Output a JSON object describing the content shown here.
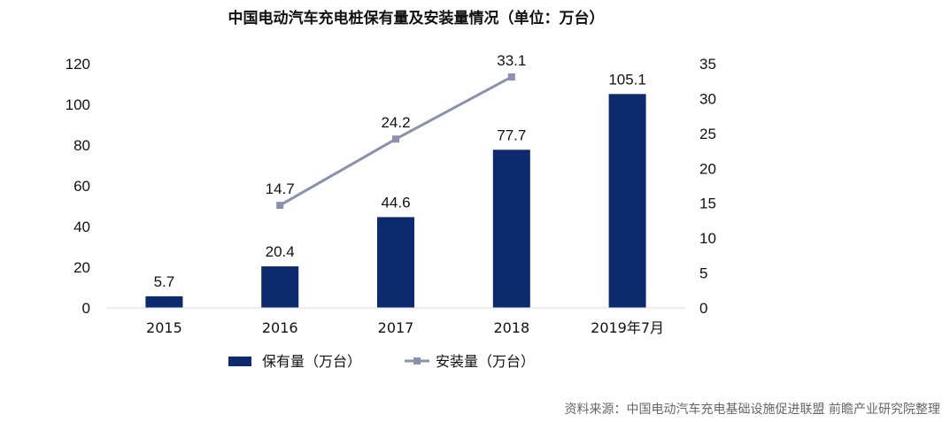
{
  "chart_data": {
    "type": "bar",
    "title": "中国电动汽车充电桩保有量及安装量情况（单位：万台）",
    "categories": [
      "2015",
      "2016",
      "2017",
      "2018",
      "2019年7月"
    ],
    "series": [
      {
        "name": "保有量（万台）",
        "type": "bar",
        "axis": "left",
        "color": "#0d2a6e",
        "values": [
          5.7,
          20.4,
          44.6,
          77.7,
          105.1
        ],
        "labels": [
          "5.7",
          "20.4",
          "44.6",
          "77.7",
          "105.1"
        ]
      },
      {
        "name": "安装量（万台）",
        "type": "line",
        "axis": "right",
        "color": "#8a90ad",
        "marker": "square",
        "values": [
          null,
          14.7,
          24.2,
          33.1,
          null
        ],
        "labels": [
          null,
          "14.7",
          "24.2",
          "33.1",
          null
        ]
      }
    ],
    "y_left": {
      "ylim": [
        0,
        120
      ],
      "ticks": [
        "0",
        "20",
        "40",
        "60",
        "80",
        "100",
        "120"
      ]
    },
    "y_right": {
      "ylim": [
        0,
        35
      ],
      "ticks": [
        "0",
        "5",
        "10",
        "15",
        "20",
        "25",
        "30",
        "35"
      ]
    },
    "grid": false,
    "legend_position": "bottom"
  },
  "source": "资料来源：中国电动汽车充电基础设施促进联盟 前瞻产业研究院整理"
}
